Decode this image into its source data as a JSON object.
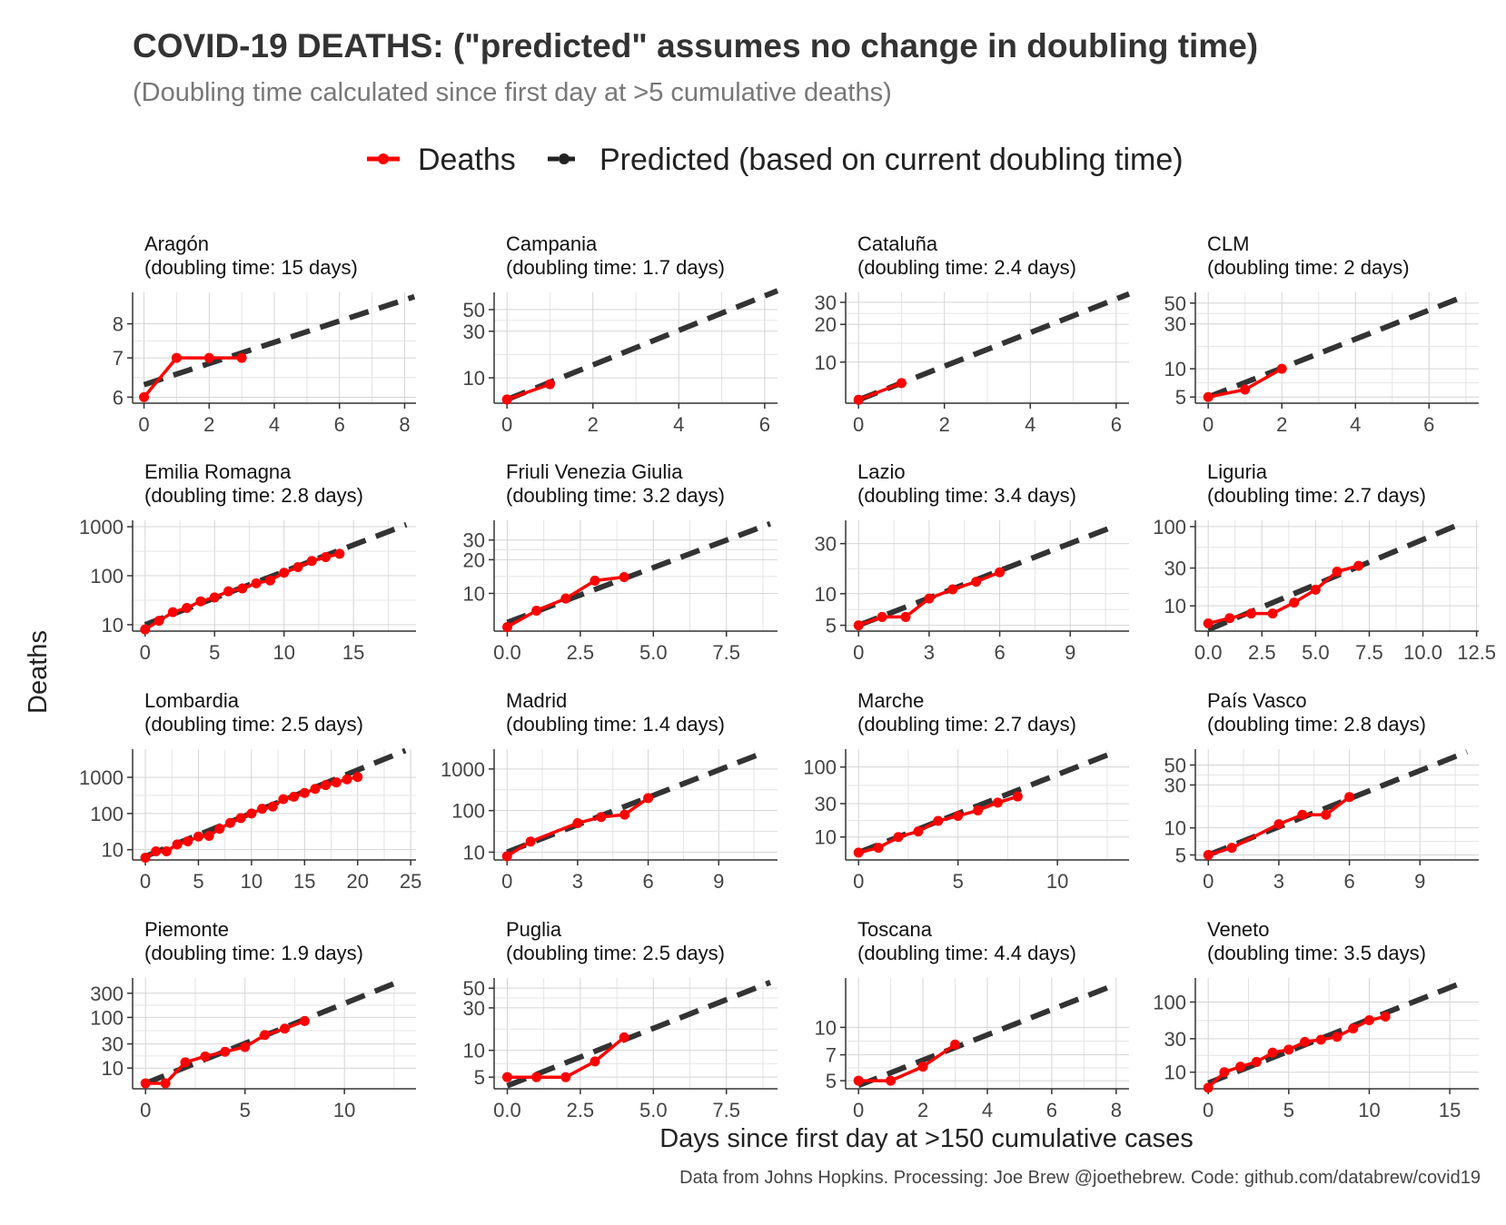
{
  "title": "COVID-19 DEATHS: (\"predicted\" assumes no change in doubling time)",
  "subtitle": "(Doubling time calculated since first day at >5 cumulative deaths)",
  "legend": {
    "deaths_label": "Deaths",
    "predicted_label": "Predicted (based on current doubling time)"
  },
  "caption": "Data from Johns Hopkins. Processing: Joe Brew @joethebrew. Code: github.com/databrew/covid19",
  "colors": {
    "deaths": "#ff0000",
    "predicted": "#333333",
    "grid": "#d4d4d4",
    "axis": "#333333"
  },
  "chart_data": {
    "type": "line",
    "xlabel": "Days since first day at >150 cumulative cases",
    "ylabel": "Deaths",
    "y_scale": "log",
    "grid": true,
    "legend_position": "top",
    "panels": [
      {
        "name": "Aragón",
        "doubling": "(doubling time: 15 days)",
        "xlim": [
          -0.35,
          8.35
        ],
        "xticks": [
          0,
          2,
          4,
          6,
          8
        ],
        "xtick_labels": [
          "0",
          "2",
          "4",
          "6",
          "8"
        ],
        "ylim": [
          5.86,
          9.05
        ],
        "yticks": [
          6,
          7,
          8
        ],
        "ytick_labels": [
          "6",
          "7",
          "8"
        ],
        "deaths_x": [
          0,
          1,
          2,
          3
        ],
        "deaths_y": [
          6,
          7,
          7,
          7
        ],
        "pred_x": [
          0,
          8.3
        ],
        "pred_y": [
          6.3,
          8.9
        ]
      },
      {
        "name": "Campania",
        "doubling": "(doubling time: 1.7 days)",
        "xlim": [
          -0.3,
          6.3
        ],
        "xticks": [
          0,
          2,
          4,
          6
        ],
        "xtick_labels": [
          "0",
          "2",
          "4",
          "6"
        ],
        "ylim": [
          5.5,
          75
        ],
        "yticks": [
          10,
          30,
          50
        ],
        "ytick_labels": [
          "10",
          "30",
          "50"
        ],
        "deaths_x": [
          0,
          1
        ],
        "deaths_y": [
          6,
          8.6
        ],
        "pred_x": [
          0,
          6.3
        ],
        "pred_y": [
          6,
          78
        ]
      },
      {
        "name": "Cataluña",
        "doubling": "(doubling time: 2.4 days)",
        "xlim": [
          -0.3,
          6.3
        ],
        "xticks": [
          0,
          2,
          4,
          6
        ],
        "xtick_labels": [
          "0",
          "2",
          "4",
          "6"
        ],
        "ylim": [
          4.7,
          36
        ],
        "yticks": [
          10,
          20,
          30
        ],
        "ytick_labels": [
          "10",
          "20",
          "30"
        ],
        "deaths_x": [
          0,
          1
        ],
        "deaths_y": [
          5,
          6.8
        ],
        "pred_x": [
          0,
          6.3
        ],
        "pred_y": [
          5,
          35
        ]
      },
      {
        "name": "CLM",
        "doubling": "(doubling time: 2 days)",
        "xlim": [
          -0.35,
          7.35
        ],
        "xticks": [
          0,
          2,
          4,
          6
        ],
        "xtick_labels": [
          "0",
          "2",
          "4",
          "6"
        ],
        "ylim": [
          4.3,
          65
        ],
        "yticks": [
          5,
          10,
          30,
          50
        ],
        "ytick_labels": [
          "5",
          "10",
          "30",
          "50"
        ],
        "deaths_x": [
          0,
          1,
          2
        ],
        "deaths_y": [
          5,
          6,
          10
        ],
        "pred_x": [
          0,
          7.0
        ],
        "pred_y": [
          5,
          60
        ]
      },
      {
        "name": "Emilia Romagna",
        "doubling": "(doubling time: 2.8 days)",
        "xlim": [
          -0.9,
          19.5
        ],
        "xticks": [
          0,
          5,
          10,
          15
        ],
        "xtick_labels": [
          "0",
          "5",
          "10",
          "15"
        ],
        "ylim": [
          7.4,
          1350
        ],
        "yticks": [
          10,
          100,
          1000
        ],
        "ytick_labels": [
          "10",
          "100",
          "1000"
        ],
        "deaths_x": [
          0,
          1,
          2,
          3,
          4,
          5,
          6,
          7,
          8,
          9,
          10,
          11,
          12,
          13,
          14
        ],
        "deaths_y": [
          8,
          12,
          18,
          22,
          30,
          36,
          48,
          55,
          70,
          80,
          115,
          150,
          200,
          240,
          280
        ],
        "pred_x": [
          0,
          18.8
        ],
        "pred_y": [
          10,
          1100
        ]
      },
      {
        "name": "Friuli Venezia Giulia",
        "doubling": "(doubling time: 3.2 days)",
        "xlim": [
          -0.45,
          9.25
        ],
        "xticks": [
          0,
          2.5,
          5,
          7.5
        ],
        "xtick_labels": [
          "0.0",
          "2.5",
          "5.0",
          "7.5"
        ],
        "ylim": [
          4.6,
          45
        ],
        "yticks": [
          10,
          20,
          30
        ],
        "ytick_labels": [
          "10",
          "20",
          "30"
        ],
        "deaths_x": [
          0,
          1,
          2,
          3,
          4
        ],
        "deaths_y": [
          5,
          7,
          9,
          13,
          14
        ],
        "pred_x": [
          0,
          9.0
        ],
        "pred_y": [
          5.5,
          42
        ]
      },
      {
        "name": "Lazio",
        "doubling": "(doubling time: 3.4 days)",
        "xlim": [
          -0.55,
          11.5
        ],
        "xticks": [
          0,
          3,
          6,
          9
        ],
        "xtick_labels": [
          "0",
          "3",
          "6",
          "9"
        ],
        "ylim": [
          4.4,
          50
        ],
        "yticks": [
          5,
          10,
          30
        ],
        "ytick_labels": [
          "5",
          "10",
          "30"
        ],
        "deaths_x": [
          0,
          1,
          2,
          3,
          4,
          5,
          6
        ],
        "deaths_y": [
          5,
          6,
          6,
          9,
          11,
          13,
          16
        ],
        "pred_x": [
          0,
          11.0
        ],
        "pred_y": [
          5,
          45
        ]
      },
      {
        "name": "Liguria",
        "doubling": "(doubling time: 2.7 days)",
        "xlim": [
          -0.6,
          12.6
        ],
        "xticks": [
          0,
          2.5,
          5,
          7.5,
          10,
          12.5
        ],
        "xtick_labels": [
          "0.0",
          "2.5",
          "5.0",
          "7.5",
          "10.0",
          "12.5"
        ],
        "ylim": [
          4.8,
          120
        ],
        "yticks": [
          10,
          30,
          100
        ],
        "ytick_labels": [
          "10",
          "30",
          "100"
        ],
        "deaths_x": [
          0,
          1,
          2,
          3,
          4,
          5,
          6,
          7
        ],
        "deaths_y": [
          6,
          7,
          8,
          8,
          11,
          16,
          27,
          32
        ],
        "pred_x": [
          0,
          11.8
        ],
        "pred_y": [
          5,
          110
        ]
      },
      {
        "name": "Lombardia",
        "doubling": "(doubling time: 2.5 days)",
        "xlim": [
          -1.2,
          25.5
        ],
        "xticks": [
          0,
          5,
          10,
          15,
          20,
          25
        ],
        "xtick_labels": [
          "0",
          "5",
          "10",
          "15",
          "20",
          "25"
        ],
        "ylim": [
          5.2,
          6000
        ],
        "yticks": [
          10,
          100,
          1000
        ],
        "ytick_labels": [
          "10",
          "100",
          "1000"
        ],
        "deaths_x": [
          0,
          1,
          2,
          3,
          4,
          5,
          6,
          7,
          8,
          9,
          10,
          11,
          12,
          13,
          14,
          15,
          16,
          17,
          18,
          19,
          20
        ],
        "deaths_y": [
          6,
          9,
          9,
          14,
          17,
          23,
          24,
          38,
          55,
          75,
          100,
          135,
          155,
          250,
          290,
          370,
          480,
          610,
          720,
          880,
          1020
        ],
        "pred_x": [
          0,
          24.5
        ],
        "pred_y": [
          6.5,
          5500
        ]
      },
      {
        "name": "Madrid",
        "doubling": "(doubling time: 1.4 days)",
        "xlim": [
          -0.55,
          11.5
        ],
        "xticks": [
          0,
          3,
          6,
          9
        ],
        "xtick_labels": [
          "0",
          "3",
          "6",
          "9"
        ],
        "ylim": [
          6.5,
          3000
        ],
        "yticks": [
          10,
          100,
          1000
        ],
        "ytick_labels": [
          "10",
          "100",
          "1000"
        ],
        "deaths_x": [
          0,
          1,
          3,
          4,
          5,
          6
        ],
        "deaths_y": [
          8,
          18,
          50,
          70,
          80,
          200
        ],
        "pred_x": [
          0,
          11.0
        ],
        "pred_y": [
          10,
          2600
        ]
      },
      {
        "name": "Marche",
        "doubling": "(doubling time: 2.7 days)",
        "xlim": [
          -0.65,
          13.6
        ],
        "xticks": [
          0,
          5,
          10
        ],
        "xtick_labels": [
          "0",
          "5",
          "10"
        ],
        "ylim": [
          4.7,
          180
        ],
        "yticks": [
          10,
          30,
          100
        ],
        "ytick_labels": [
          "10",
          "30",
          "100"
        ],
        "deaths_x": [
          0,
          1,
          2,
          3,
          4,
          5,
          6,
          7,
          8
        ],
        "deaths_y": [
          6,
          7,
          10,
          12,
          17,
          20,
          24,
          31,
          38
        ],
        "pred_x": [
          0,
          12.8
        ],
        "pred_y": [
          6,
          160
        ]
      },
      {
        "name": "País Vasco",
        "doubling": "(doubling time: 2.8 days)",
        "xlim": [
          -0.55,
          11.5
        ],
        "xticks": [
          0,
          3,
          6,
          9
        ],
        "xtick_labels": [
          "0",
          "3",
          "6",
          "9"
        ],
        "ylim": [
          4.4,
          75
        ],
        "yticks": [
          5,
          10,
          30,
          50
        ],
        "ytick_labels": [
          "5",
          "10",
          "30",
          "50"
        ],
        "deaths_x": [
          0,
          1,
          3,
          4,
          5,
          6
        ],
        "deaths_y": [
          5,
          6,
          11,
          14,
          14,
          22
        ],
        "pred_x": [
          0,
          11.0
        ],
        "pred_y": [
          5,
          70
        ]
      },
      {
        "name": "Piemonte",
        "doubling": "(doubling time: 1.9 days)",
        "xlim": [
          -0.65,
          13.6
        ],
        "xticks": [
          0,
          5,
          10
        ],
        "xtick_labels": [
          "0",
          "5",
          "10"
        ],
        "ylim": [
          3.9,
          600
        ],
        "yticks": [
          10,
          30,
          100,
          300
        ],
        "ytick_labels": [
          "10",
          "30",
          "100",
          "300"
        ],
        "deaths_x": [
          0,
          1,
          2,
          3,
          4,
          5,
          6,
          7,
          8
        ],
        "deaths_y": [
          5,
          5,
          13,
          17,
          21,
          26,
          45,
          60,
          85
        ],
        "pred_x": [
          0,
          12.8
        ],
        "pred_y": [
          5,
          520
        ]
      },
      {
        "name": "Puglia",
        "doubling": "(doubling time: 2.5 days)",
        "xlim": [
          -0.45,
          9.25
        ],
        "xticks": [
          0,
          2.5,
          5,
          7.5
        ],
        "xtick_labels": [
          "0.0",
          "2.5",
          "5.0",
          "7.5"
        ],
        "ylim": [
          3.7,
          65
        ],
        "yticks": [
          5,
          10,
          30,
          50
        ],
        "ytick_labels": [
          "5",
          "10",
          "30",
          "50"
        ],
        "deaths_x": [
          0,
          1,
          2,
          3,
          4
        ],
        "deaths_y": [
          5,
          5,
          5,
          7.5,
          14
        ],
        "pred_x": [
          0,
          9.0
        ],
        "pred_y": [
          4,
          58
        ]
      },
      {
        "name": "Toscana",
        "doubling": "(doubling time: 4.4 days)",
        "xlim": [
          -0.4,
          8.4
        ],
        "xticks": [
          0,
          2,
          4,
          6,
          8
        ],
        "xtick_labels": [
          "0",
          "2",
          "4",
          "6",
          "8"
        ],
        "ylim": [
          4.5,
          19
        ],
        "yticks": [
          5,
          7,
          10
        ],
        "ytick_labels": [
          "5",
          "7",
          "10"
        ],
        "deaths_x": [
          0,
          1,
          2,
          3
        ],
        "deaths_y": [
          5,
          5,
          6,
          8
        ],
        "pred_x": [
          0,
          8.0
        ],
        "pred_y": [
          4.7,
          17.5
        ]
      },
      {
        "name": "Veneto",
        "doubling": "(doubling time: 3.5 days)",
        "xlim": [
          -0.8,
          16.8
        ],
        "xticks": [
          0,
          5,
          10,
          15
        ],
        "xtick_labels": [
          "0",
          "5",
          "10",
          "15"
        ],
        "ylim": [
          5.8,
          220
        ],
        "yticks": [
          10,
          30,
          100
        ],
        "ytick_labels": [
          "10",
          "30",
          "100"
        ],
        "deaths_x": [
          0,
          1,
          2,
          3,
          4,
          5,
          6,
          7,
          8,
          9,
          10,
          11
        ],
        "deaths_y": [
          6,
          10,
          12,
          14,
          19,
          21,
          27,
          29,
          32,
          42,
          55,
          62
        ],
        "pred_x": [
          0,
          15.8
        ],
        "pred_y": [
          7,
          190
        ]
      }
    ]
  }
}
